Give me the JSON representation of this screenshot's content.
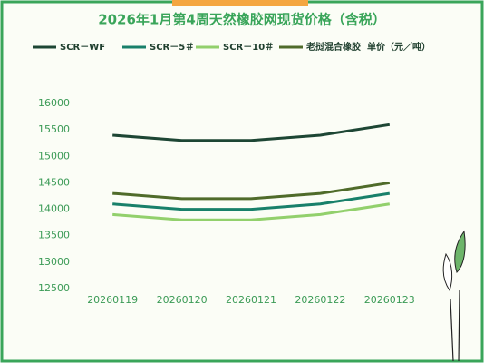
{
  "chart_data": {
    "type": "line",
    "title": "2026年1月第4周天然橡胶网现货价格（含税）",
    "y_label": "单价（元／吨）",
    "categories": [
      "20260119",
      "20260120",
      "20260121",
      "20260122",
      "20260123"
    ],
    "series": [
      {
        "name": "SCR－WF",
        "color": "#1d4634",
        "values": [
          15400,
          15300,
          15300,
          15400,
          15600
        ]
      },
      {
        "name": "SCR－5＃",
        "color": "#18806a",
        "values": [
          14100,
          14000,
          14000,
          14100,
          14300
        ]
      },
      {
        "name": "SCR－10＃",
        "color": "#92d06c",
        "values": [
          13900,
          13800,
          13800,
          13900,
          14100
        ]
      },
      {
        "name": "老挝混合橡胶",
        "color": "#4f6b2a",
        "values": [
          14300,
          14200,
          14200,
          14300,
          14500
        ]
      }
    ],
    "ylim": [
      12500,
      16000
    ],
    "yticks": [
      12500,
      13000,
      13500,
      14000,
      14500,
      15000,
      15500,
      16000
    ],
    "grid": false
  }
}
